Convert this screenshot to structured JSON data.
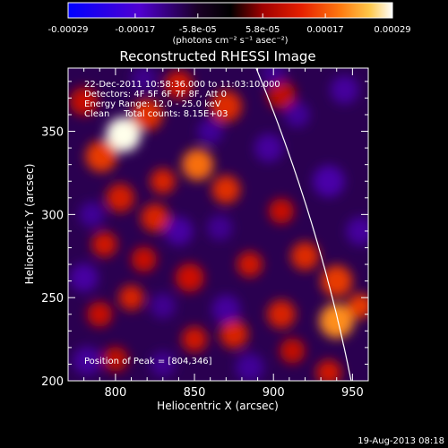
{
  "footer_timestamp": "19-Aug-2013 08:18",
  "colorbar": {
    "tick_labels": [
      "-0.00029",
      "-0.00017",
      "-5.8e-05",
      "5.8e-05",
      "0.00017",
      "0.00029"
    ],
    "tick_values": [
      -0.00029,
      -0.00017,
      -5.8e-05,
      5.8e-05,
      0.00017,
      0.00029
    ],
    "range": [
      -0.00029,
      0.00029
    ],
    "unit_label": "(photons cm⁻² s⁻¹ asec⁻²)",
    "colors": [
      "#0000ff",
      "#5a00c8",
      "#000000",
      "#cc0000",
      "#ff6400",
      "#ffaa28",
      "#ffffff"
    ]
  },
  "chart_data": {
    "type": "heatmap",
    "title": "Reconstructed RHESSI Image",
    "xlabel": "Heliocentric X (arcsec)",
    "ylabel": "Heliocentric Y (arcsec)",
    "xlim": [
      770,
      960
    ],
    "ylim": [
      200,
      388
    ],
    "x_ticks": [
      800,
      850,
      900,
      950
    ],
    "y_ticks": [
      200,
      250,
      300,
      350
    ],
    "annotations": [
      "22-Dec-2011 10:58:36.000 to 11:03:10.000",
      "Detectors: 4F 5F 6F 7F 8F, Att 0",
      "Energy Range: 12.0 - 25.0 keV",
      "Clean     Total counts: 8.15E+03"
    ],
    "peak_label": "Position of Peak = [804,346]",
    "peak": [
      804,
      346
    ],
    "limb_arc": {
      "center": [
        0,
        0
      ],
      "radius": 970
    },
    "blobs": [
      {
        "x": 805,
        "y": 348,
        "r": 11,
        "v": 1.0
      },
      {
        "x": 791,
        "y": 335,
        "r": 10,
        "v": 0.55
      },
      {
        "x": 820,
        "y": 360,
        "r": 10,
        "v": 0.5
      },
      {
        "x": 780,
        "y": 368,
        "r": 9,
        "v": 0.35
      },
      {
        "x": 840,
        "y": 378,
        "r": 9,
        "v": 0.4
      },
      {
        "x": 870,
        "y": 365,
        "r": 10,
        "v": 0.48
      },
      {
        "x": 905,
        "y": 372,
        "r": 9,
        "v": 0.3
      },
      {
        "x": 852,
        "y": 330,
        "r": 10,
        "v": 0.7
      },
      {
        "x": 830,
        "y": 320,
        "r": 8,
        "v": 0.45
      },
      {
        "x": 870,
        "y": 315,
        "r": 9,
        "v": 0.5
      },
      {
        "x": 803,
        "y": 310,
        "r": 9,
        "v": 0.42
      },
      {
        "x": 825,
        "y": 298,
        "r": 9,
        "v": 0.45
      },
      {
        "x": 793,
        "y": 282,
        "r": 8,
        "v": 0.4
      },
      {
        "x": 818,
        "y": 273,
        "r": 8,
        "v": 0.35
      },
      {
        "x": 847,
        "y": 262,
        "r": 9,
        "v": 0.38
      },
      {
        "x": 810,
        "y": 250,
        "r": 8,
        "v": 0.45
      },
      {
        "x": 790,
        "y": 240,
        "r": 8,
        "v": 0.35
      },
      {
        "x": 885,
        "y": 270,
        "r": 8,
        "v": 0.4
      },
      {
        "x": 905,
        "y": 302,
        "r": 8,
        "v": 0.35
      },
      {
        "x": 920,
        "y": 275,
        "r": 9,
        "v": 0.48
      },
      {
        "x": 940,
        "y": 260,
        "r": 10,
        "v": 0.55
      },
      {
        "x": 905,
        "y": 240,
        "r": 9,
        "v": 0.45
      },
      {
        "x": 940,
        "y": 236,
        "r": 11,
        "v": 0.78
      },
      {
        "x": 955,
        "y": 245,
        "r": 8,
        "v": 0.55
      },
      {
        "x": 875,
        "y": 228,
        "r": 9,
        "v": 0.45
      },
      {
        "x": 850,
        "y": 225,
        "r": 8,
        "v": 0.4
      },
      {
        "x": 912,
        "y": 218,
        "r": 8,
        "v": 0.32
      },
      {
        "x": 800,
        "y": 213,
        "r": 8,
        "v": 0.3
      },
      {
        "x": 935,
        "y": 205,
        "r": 8,
        "v": 0.4
      },
      {
        "x": 785,
        "y": 300,
        "r": 8,
        "v": -0.5
      },
      {
        "x": 780,
        "y": 262,
        "r": 9,
        "v": -0.6
      },
      {
        "x": 840,
        "y": 290,
        "r": 9,
        "v": -0.6
      },
      {
        "x": 860,
        "y": 350,
        "r": 8,
        "v": -0.5
      },
      {
        "x": 897,
        "y": 340,
        "r": 9,
        "v": -0.55
      },
      {
        "x": 935,
        "y": 320,
        "r": 10,
        "v": -0.65
      },
      {
        "x": 945,
        "y": 375,
        "r": 9,
        "v": -0.55
      },
      {
        "x": 915,
        "y": 360,
        "r": 8,
        "v": -0.5
      },
      {
        "x": 866,
        "y": 292,
        "r": 8,
        "v": -0.45
      },
      {
        "x": 870,
        "y": 243,
        "r": 9,
        "v": -0.55
      },
      {
        "x": 830,
        "y": 245,
        "r": 8,
        "v": -0.45
      },
      {
        "x": 782,
        "y": 212,
        "r": 9,
        "v": -0.55
      },
      {
        "x": 830,
        "y": 210,
        "r": 8,
        "v": -0.45
      },
      {
        "x": 885,
        "y": 208,
        "r": 9,
        "v": -0.5
      },
      {
        "x": 955,
        "y": 290,
        "r": 9,
        "v": -0.55
      },
      {
        "x": 900,
        "y": 385,
        "r": 8,
        "v": -0.4
      },
      {
        "x": 818,
        "y": 382,
        "r": 8,
        "v": -0.4
      }
    ]
  }
}
